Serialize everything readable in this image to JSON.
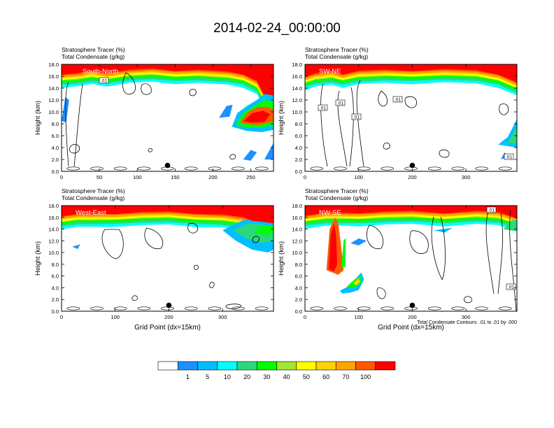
{
  "figure": {
    "title": "2014-02-24_00:00:00"
  },
  "chart_data": [
    {
      "type": "heatmap",
      "panel": "South-North",
      "title_lines": [
        "Stratosphere Tracer   (%)",
        "Total Condensate   (g/kg)"
      ],
      "cross_section_label": "South-North",
      "ylabel": "Height (km)",
      "xlabel": "",
      "xlim": [
        0,
        280
      ],
      "ylim": [
        0,
        18
      ],
      "xticks": [
        0,
        50,
        100,
        150,
        200,
        250
      ],
      "yticks": [
        0.0,
        2.0,
        4.0,
        6.0,
        8.0,
        10.0,
        12.0,
        14.0,
        16.0,
        18.0
      ],
      "contour_labels": [
        ".01"
      ],
      "marker": {
        "x": 140,
        "y": 1.0
      },
      "tracer_field": {
        "description_free": true,
        "bands": [
          {
            "value": 100,
            "x": [
              0,
              280
            ],
            "ytop": 18.0,
            "ybottom_profile": [
              [
                0,
                16.8
              ],
              [
                20,
                16.6
              ],
              [
                40,
                17.0
              ],
              [
                60,
                16.9
              ],
              [
                80,
                17.2
              ],
              [
                120,
                17.3
              ],
              [
                160,
                17.2
              ],
              [
                200,
                16.9
              ],
              [
                230,
                16.8
              ],
              [
                250,
                15.5
              ],
              [
                265,
                13.0
              ],
              [
                280,
                12.5
              ]
            ]
          },
          {
            "value": 70,
            "blob": [
              [
                225,
                8.0
              ],
              [
                240,
                10.5
              ],
              [
                255,
                11.5
              ],
              [
                270,
                10.5
              ],
              [
                280,
                9.0
              ],
              [
                280,
                7.5
              ],
              [
                265,
                7.2
              ],
              [
                245,
                7.2
              ]
            ]
          }
        ]
      }
    },
    {
      "type": "heatmap",
      "panel": "SW-NE",
      "title_lines": [
        "Stratosphere Tracer   (%)",
        "Total Condensate   (g/kg)"
      ],
      "cross_section_label": "SW-NE",
      "ylabel": "Height (km)",
      "xlabel": "",
      "xlim": [
        0,
        395
      ],
      "ylim": [
        0,
        18
      ],
      "xticks": [
        0,
        100,
        200,
        300
      ],
      "yticks": [
        0.0,
        2.0,
        4.0,
        6.0,
        8.0,
        10.0,
        12.0,
        14.0,
        16.0,
        18.0
      ],
      "contour_labels": [
        ".01",
        ".01",
        ".01",
        ".01",
        ".01"
      ],
      "marker": {
        "x": 200,
        "y": 1.0
      }
    },
    {
      "type": "heatmap",
      "panel": "West-East",
      "title_lines": [
        "Stratosphere Tracer   (%)",
        "Total Condensate   (g/kg)"
      ],
      "cross_section_label": "West-East",
      "ylabel": "Height (km)",
      "xlabel": "Grid Point (dx=15km)",
      "xlim": [
        0,
        395
      ],
      "ylim": [
        0,
        18
      ],
      "xticks": [
        0,
        100,
        200,
        300
      ],
      "yticks": [
        0.0,
        2.0,
        4.0,
        6.0,
        8.0,
        10.0,
        12.0,
        14.0,
        16.0,
        18.0
      ],
      "contour_labels": [],
      "marker": {
        "x": 200,
        "y": 1.0
      }
    },
    {
      "type": "heatmap",
      "panel": "NW-SE",
      "title_lines": [
        "Stratosphere Tracer   (%)",
        "Total Condensate   (g/kg)"
      ],
      "cross_section_label": "NW-SE",
      "ylabel": "Height (km)",
      "xlabel": "Grid Point (dx=15km)",
      "xlim": [
        0,
        395
      ],
      "ylim": [
        0,
        18
      ],
      "xticks": [
        0,
        100,
        200,
        300
      ],
      "yticks": [
        0.0,
        2.0,
        4.0,
        6.0,
        8.0,
        10.0,
        12.0,
        14.0,
        16.0,
        18.0
      ],
      "contour_labels": [
        ".01",
        ".01"
      ],
      "marker": {
        "x": 200,
        "y": 1.0
      },
      "footnote": "Total Condensate Contours: .01 to .01 by .000"
    }
  ],
  "colorbar": {
    "levels": [
      "1",
      "5",
      "10",
      "20",
      "30",
      "40",
      "50",
      "60",
      "70",
      "100"
    ],
    "colors": [
      "#ffffff",
      "#1e90ff",
      "#00bfff",
      "#00ffff",
      "#2bd97a",
      "#00ff00",
      "#a0e632",
      "#ffff00",
      "#ffd200",
      "#ffa500",
      "#ff5a00",
      "#ff0000"
    ]
  }
}
